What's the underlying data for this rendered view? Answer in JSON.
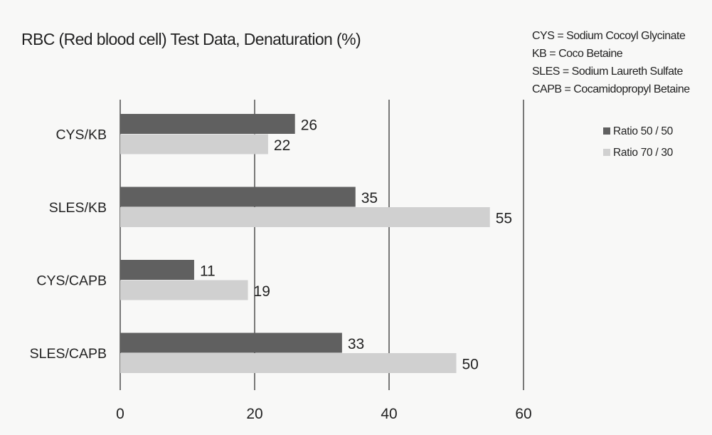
{
  "chart_data": {
    "type": "bar",
    "orientation": "horizontal",
    "title": "RBC (Red blood cell) Test Data, Denaturation (%)",
    "categories": [
      "CYS/KB",
      "SLES/KB",
      "CYS/CAPB",
      "SLES/CAPB"
    ],
    "series": [
      {
        "name": "Ratio 50 / 50",
        "color": "#606060",
        "values": [
          26,
          35,
          11,
          33
        ]
      },
      {
        "name": "Ratio 70 / 30",
        "color": "#d0d0d0",
        "values": [
          22,
          55,
          19,
          50
        ]
      }
    ],
    "xlim": [
      0,
      60
    ],
    "xticks": [
      0,
      20,
      40,
      60
    ],
    "xlabel": "",
    "ylabel": "",
    "grid": "vertical",
    "legend_position": "right",
    "notes": [
      "CYS = Sodium Cocoyl Glycinate",
      "KB = Coco Betaine",
      "SLES = Sodium Laureth Sulfate",
      "CAPB = Cocamidopropyl Betaine"
    ]
  }
}
